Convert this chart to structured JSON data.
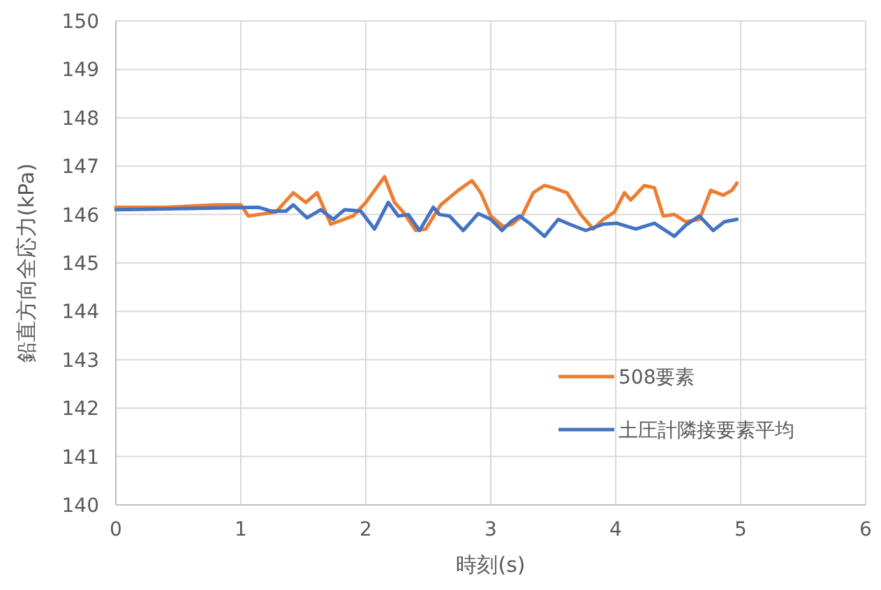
{
  "chart_data": {
    "type": "line",
    "xlabel": "時刻(s)",
    "ylabel": "鉛直方向全応力(kPa)",
    "xlim": [
      0,
      6
    ],
    "xticks": [
      0,
      1,
      2,
      3,
      4,
      5,
      6
    ],
    "ylim": [
      140,
      150
    ],
    "yticks": [
      140,
      141,
      142,
      143,
      144,
      145,
      146,
      147,
      148,
      149,
      150
    ],
    "grid": true,
    "legend": "right",
    "marker": "none",
    "line_style": "solid",
    "series": [
      {
        "name": "508要素",
        "color": "#ed7d31",
        "x": [
          0,
          0.4,
          0.8,
          1.0,
          1.06,
          1.28,
          1.42,
          1.52,
          1.61,
          1.72,
          1.9,
          2.0,
          2.15,
          2.23,
          2.3,
          2.4,
          2.48,
          2.6,
          2.74,
          2.85,
          2.92,
          3.0,
          3.1,
          3.17,
          3.25,
          3.34,
          3.43,
          3.5,
          3.61,
          3.72,
          3.82,
          3.9,
          3.99,
          4.07,
          4.12,
          4.23,
          4.31,
          4.38,
          4.47,
          4.56,
          4.67,
          4.76,
          4.86,
          4.93,
          4.97
        ],
        "values": [
          146.15,
          146.15,
          146.2,
          146.2,
          145.97,
          146.05,
          146.45,
          146.25,
          146.45,
          145.8,
          145.97,
          146.25,
          146.78,
          146.25,
          146.05,
          145.67,
          145.7,
          146.2,
          146.5,
          146.7,
          146.45,
          145.97,
          145.75,
          145.8,
          145.97,
          146.45,
          146.6,
          146.55,
          146.45,
          146.0,
          145.7,
          145.9,
          146.05,
          146.45,
          146.3,
          146.6,
          146.55,
          145.97,
          146.0,
          145.85,
          145.9,
          146.5,
          146.4,
          146.5,
          146.65
        ]
      },
      {
        "name": "土圧計隣接要素平均",
        "color": "#4472c4",
        "x": [
          0,
          1.14,
          1.24,
          1.36,
          1.42,
          1.53,
          1.64,
          1.74,
          1.83,
          1.96,
          2.07,
          2.18,
          2.26,
          2.34,
          2.43,
          2.54,
          2.59,
          2.67,
          2.78,
          2.9,
          3.0,
          3.09,
          3.16,
          3.23,
          3.32,
          3.43,
          3.54,
          3.63,
          3.76,
          3.9,
          4.01,
          4.16,
          4.31,
          4.47,
          4.56,
          4.67,
          4.78,
          4.87,
          4.97
        ],
        "values": [
          146.1,
          146.15,
          146.07,
          146.07,
          146.2,
          145.93,
          146.1,
          145.9,
          146.1,
          146.07,
          145.7,
          146.25,
          145.97,
          146.0,
          145.67,
          146.15,
          146.0,
          145.97,
          145.67,
          146.02,
          145.9,
          145.67,
          145.85,
          145.97,
          145.8,
          145.55,
          145.9,
          145.8,
          145.67,
          145.8,
          145.82,
          145.7,
          145.82,
          145.55,
          145.78,
          145.97,
          145.67,
          145.85,
          145.9
        ]
      }
    ]
  }
}
